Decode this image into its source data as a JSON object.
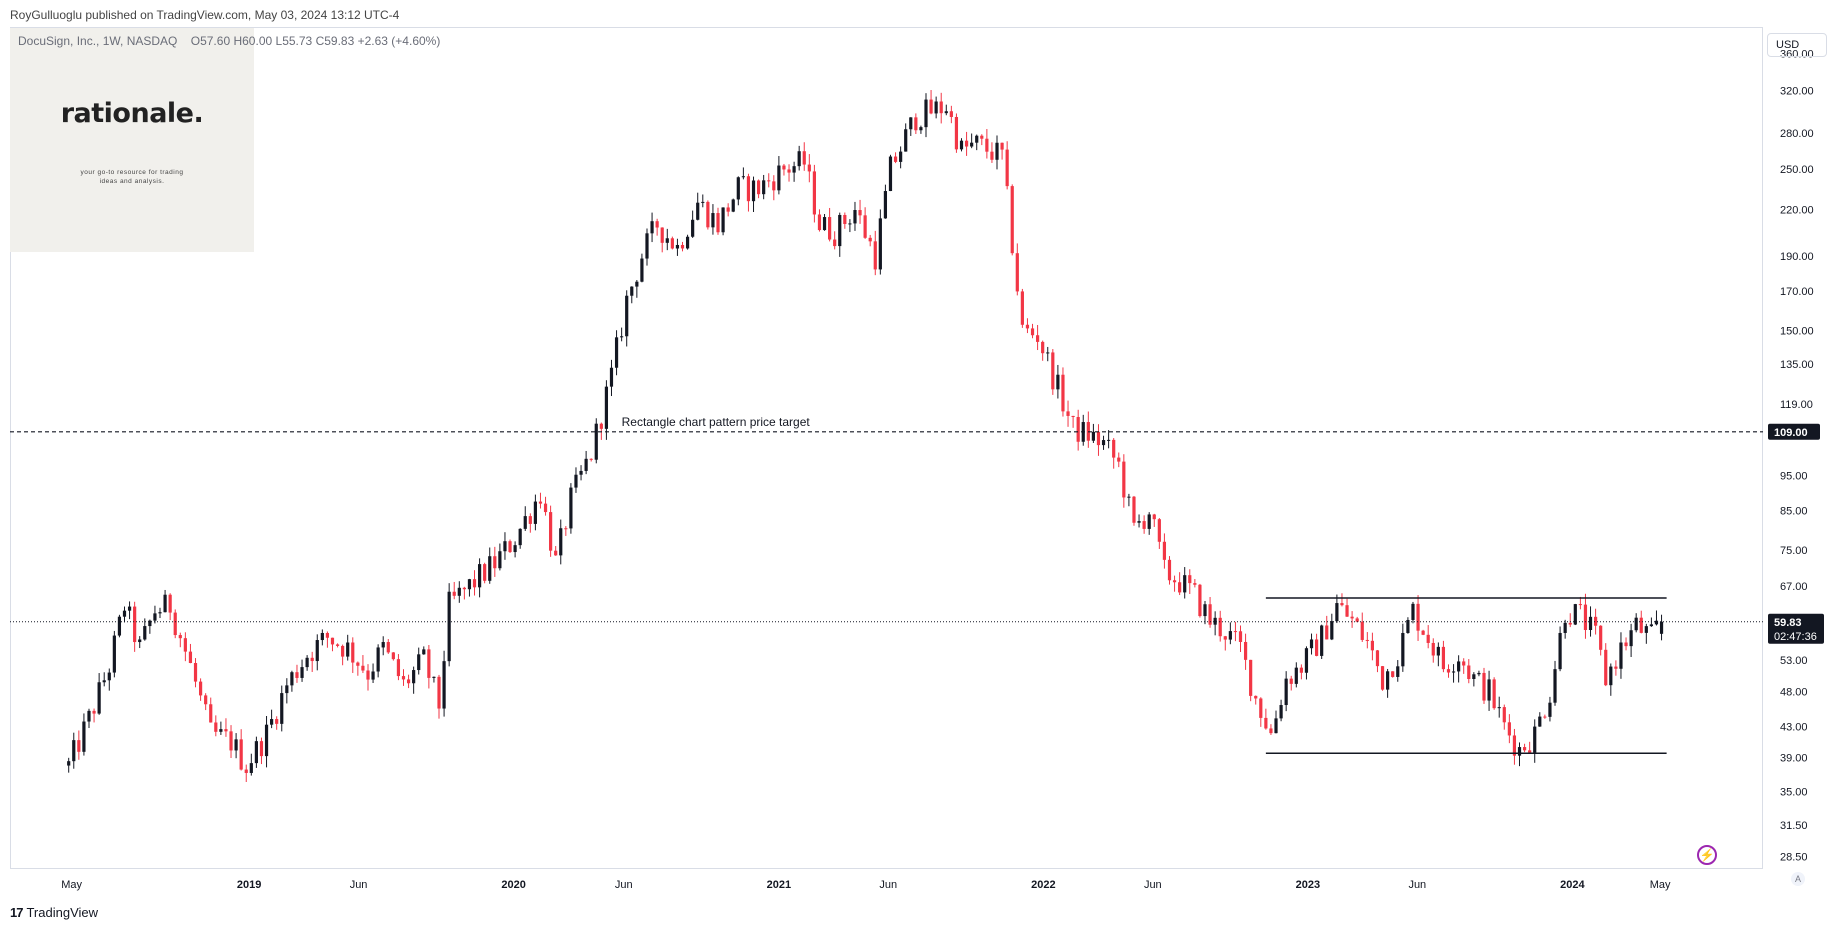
{
  "header": {
    "publisher_line": "RoyGulluoglu published on TradingView.com, May 03, 2024 13:12 UTC-4"
  },
  "legend": {
    "symbol": "DocuSign, Inc., 1W, NASDAQ",
    "open": "O57.60",
    "high": "H60.00",
    "low": "L55.73",
    "close": "C59.83",
    "change": "+2.63 (+4.60%)"
  },
  "logo": {
    "brand": "rationale.",
    "tagline": "your go-to resource for trading ideas and analysis."
  },
  "currency_button": "USD",
  "auto_button": "A",
  "footer": {
    "brand": "TradingView"
  },
  "colors": {
    "up": "#131722",
    "down": "#f23645",
    "grid": "#d9dde6",
    "brand_box": "#f1f0ec"
  },
  "chart_data": {
    "type": "candlestick",
    "scale": "log",
    "ylim": [
      27.5,
      390
    ],
    "y_ticks": [
      "360.00",
      "320.00",
      "280.00",
      "250.00",
      "220.00",
      "190.00",
      "170.00",
      "150.00",
      "135.00",
      "119.00",
      "109.00",
      "95.00",
      "85.00",
      "75.00",
      "67.00",
      "59.83",
      "53.00",
      "48.00",
      "43.00",
      "39.00",
      "35.00",
      "31.50",
      "28.50"
    ],
    "y_tick_values": [
      360,
      320,
      280,
      250,
      220,
      190,
      170,
      150,
      135,
      119,
      95,
      85,
      75,
      67,
      53,
      48,
      43,
      39,
      35,
      31.5,
      28.5
    ],
    "x_ticks": [
      {
        "label": "May",
        "date": "2018-05-01",
        "bold": false
      },
      {
        "label": "2019",
        "date": "2019-01-01",
        "bold": true
      },
      {
        "label": "Jun",
        "date": "2019-06-01",
        "bold": false
      },
      {
        "label": "2020",
        "date": "2020-01-01",
        "bold": true
      },
      {
        "label": "Jun",
        "date": "2020-06-01",
        "bold": false
      },
      {
        "label": "2021",
        "date": "2021-01-01",
        "bold": true
      },
      {
        "label": "Jun",
        "date": "2021-06-01",
        "bold": false
      },
      {
        "label": "2022",
        "date": "2022-01-01",
        "bold": true
      },
      {
        "label": "Jun",
        "date": "2022-06-01",
        "bold": false
      },
      {
        "label": "2023",
        "date": "2023-01-01",
        "bold": true
      },
      {
        "label": "Jun",
        "date": "2023-06-01",
        "bold": false
      },
      {
        "label": "2024",
        "date": "2024-01-01",
        "bold": true
      },
      {
        "label": "May",
        "date": "2024-05-01",
        "bold": false
      }
    ],
    "xlim": [
      "2018-02-05",
      "2024-09-20"
    ],
    "price_path": [
      [
        "2018-04-27",
        38
      ],
      [
        "2018-05-25",
        44
      ],
      [
        "2018-06-22",
        52
      ],
      [
        "2018-07-13",
        63
      ],
      [
        "2018-08-03",
        55
      ],
      [
        "2018-08-24",
        62
      ],
      [
        "2018-09-14",
        63
      ],
      [
        "2018-10-12",
        52
      ],
      [
        "2018-11-09",
        42
      ],
      [
        "2018-12-07",
        41
      ],
      [
        "2018-12-28",
        38
      ],
      [
        "2019-01-25",
        42
      ],
      [
        "2019-02-22",
        49
      ],
      [
        "2019-03-22",
        54
      ],
      [
        "2019-04-19",
        57
      ],
      [
        "2019-05-17",
        55
      ],
      [
        "2019-06-14",
        51
      ],
      [
        "2019-07-05",
        55
      ],
      [
        "2019-08-02",
        49
      ],
      [
        "2019-08-30",
        53
      ],
      [
        "2019-09-20",
        46
      ],
      [
        "2019-10-04",
        63
      ],
      [
        "2019-11-08",
        68
      ],
      [
        "2019-12-06",
        72
      ],
      [
        "2020-01-03",
        78
      ],
      [
        "2020-02-07",
        90
      ],
      [
        "2020-02-28",
        72
      ],
      [
        "2020-03-20",
        88
      ],
      [
        "2020-04-17",
        102
      ],
      [
        "2020-05-15",
        130
      ],
      [
        "2020-06-05",
        165
      ],
      [
        "2020-06-26",
        190
      ],
      [
        "2020-07-17",
        210
      ],
      [
        "2020-08-14",
        195
      ],
      [
        "2020-09-11",
        225
      ],
      [
        "2020-10-09",
        210
      ],
      [
        "2020-11-06",
        235
      ],
      [
        "2020-12-04",
        235
      ],
      [
        "2021-01-08",
        250
      ],
      [
        "2021-02-05",
        255
      ],
      [
        "2021-02-26",
        210
      ],
      [
        "2021-03-19",
        205
      ],
      [
        "2021-04-16",
        220
      ],
      [
        "2021-05-14",
        190
      ],
      [
        "2021-06-04",
        250
      ],
      [
        "2021-07-09",
        295
      ],
      [
        "2021-07-30",
        300
      ],
      [
        "2021-08-20",
        305
      ],
      [
        "2021-09-10",
        265
      ],
      [
        "2021-10-01",
        270
      ],
      [
        "2021-11-05",
        260
      ],
      [
        "2021-12-03",
        150
      ],
      [
        "2021-12-24",
        148
      ],
      [
        "2022-01-21",
        125
      ],
      [
        "2022-02-11",
        110
      ],
      [
        "2022-03-04",
        108
      ],
      [
        "2022-03-25",
        105
      ],
      [
        "2022-04-15",
        98
      ],
      [
        "2022-05-06",
        80
      ],
      [
        "2022-05-27",
        85
      ],
      [
        "2022-06-17",
        70
      ],
      [
        "2022-07-08",
        68
      ],
      [
        "2022-07-29",
        65
      ],
      [
        "2022-08-19",
        60
      ],
      [
        "2022-09-09",
        58
      ],
      [
        "2022-09-30",
        55
      ],
      [
        "2022-10-21",
        47
      ],
      [
        "2022-11-11",
        42
      ],
      [
        "2022-12-02",
        50
      ],
      [
        "2022-12-23",
        52
      ],
      [
        "2023-01-20",
        57
      ],
      [
        "2023-02-10",
        63
      ],
      [
        "2023-03-03",
        60
      ],
      [
        "2023-03-24",
        56
      ],
      [
        "2023-04-14",
        50
      ],
      [
        "2023-05-05",
        54
      ],
      [
        "2023-05-26",
        62
      ],
      [
        "2023-06-16",
        57
      ],
      [
        "2023-07-07",
        52
      ],
      [
        "2023-07-28",
        54
      ],
      [
        "2023-08-18",
        50
      ],
      [
        "2023-09-08",
        48
      ],
      [
        "2023-09-29",
        43
      ],
      [
        "2023-10-20",
        40
      ],
      [
        "2023-11-10",
        42
      ],
      [
        "2023-12-01",
        48
      ],
      [
        "2023-12-22",
        62
      ],
      [
        "2024-01-12",
        61
      ],
      [
        "2024-02-02",
        57
      ],
      [
        "2024-02-16",
        50
      ],
      [
        "2024-03-08",
        55
      ],
      [
        "2024-03-29",
        59
      ],
      [
        "2024-04-19",
        57
      ],
      [
        "2024-05-03",
        59.83
      ]
    ],
    "last_price": {
      "value": 59.83,
      "label": "59.83",
      "countdown": "02:47:36"
    },
    "target": {
      "value": 109,
      "label": "109.00",
      "annotation": "Rectangle chart pattern price target",
      "label_date": "2020-05-29"
    },
    "rectangle": {
      "start": "2022-11-04",
      "end": "2024-05-10",
      "top": 64.5,
      "bottom": 39.5
    }
  }
}
